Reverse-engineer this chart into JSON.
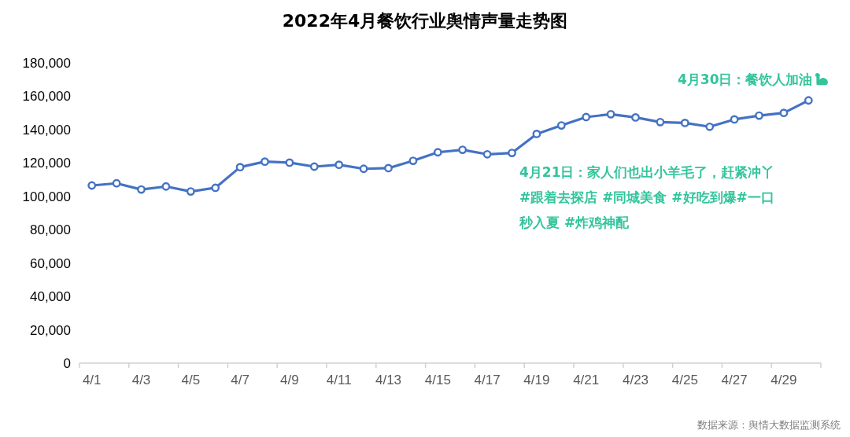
{
  "chart_data": {
    "type": "line",
    "title": "2022年4月餐饮行业舆情声量走势图",
    "categories": [
      "4/1",
      null,
      "4/3",
      null,
      "4/5",
      null,
      "4/7",
      null,
      "4/9",
      null,
      "4/11",
      null,
      "4/13",
      null,
      "4/15",
      null,
      "4/17",
      null,
      "4/19",
      null,
      "4/21",
      null,
      "4/23",
      null,
      "4/25",
      null,
      "4/27",
      null,
      "4/29",
      null
    ],
    "values": [
      106500,
      107800,
      104100,
      105900,
      102900,
      105100,
      117500,
      120800,
      120200,
      117800,
      118900,
      116500,
      116900,
      121300,
      126400,
      127900,
      125200,
      126000,
      137400,
      142500,
      147500,
      149200,
      147300,
      144500,
      144000,
      141700,
      146100,
      148400,
      150000,
      157500
    ],
    "color": "#4472c4",
    "ylim": [
      0,
      180000
    ],
    "yticks": [
      0,
      {
        "value": 20000,
        "label": "20,000"
      },
      {
        "value": 40000,
        "label": "40,000"
      },
      {
        "value": 60000,
        "label": "60,000"
      },
      {
        "value": 80000,
        "label": "80,000"
      },
      {
        "value": 100000,
        "label": "100,000"
      },
      {
        "value": 120000,
        "label": "120,000"
      },
      {
        "value": 140000,
        "label": "140,000"
      },
      {
        "value": 160000,
        "label": "160,000"
      },
      {
        "value": 180000,
        "label": "180,000"
      }
    ],
    "marker": "circle",
    "line_style": "solid",
    "annotations": [
      "4月30日：餐饮人加油",
      "4月21日：家人们也出小羊毛了，赶紧冲丫#跟着去探店 #同城美食 #好吃到爆#一口秒入夏 #炸鸡神配",
      "数据来源：舆情大数据监测系统"
    ]
  }
}
